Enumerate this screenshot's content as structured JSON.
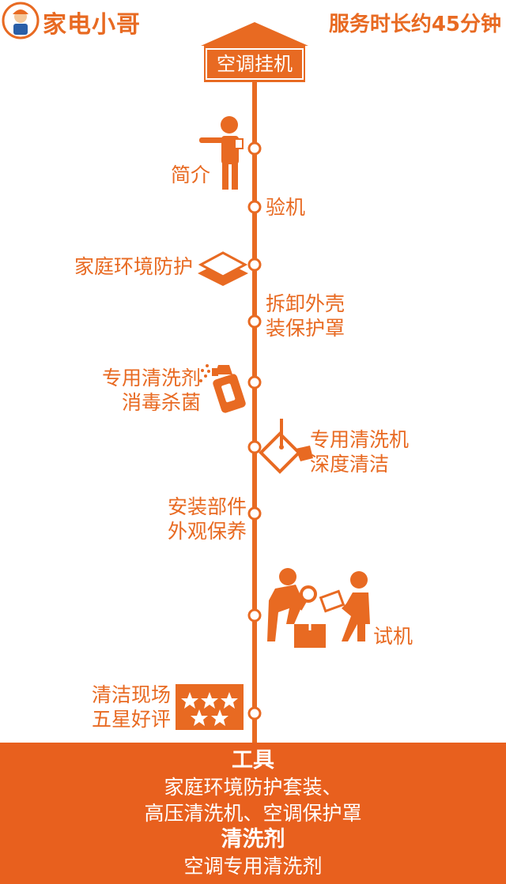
{
  "header": {
    "brand": "家电小哥",
    "service_duration": "服务时长约45分钟"
  },
  "title": "空调挂机",
  "steps": [
    {
      "lines": [
        "简介"
      ]
    },
    {
      "lines": [
        "验机"
      ]
    },
    {
      "lines": [
        "家庭环境防护"
      ]
    },
    {
      "lines": [
        "拆卸外壳",
        "装保护罩"
      ]
    },
    {
      "lines": [
        "专用清洗剂",
        "消毒杀菌"
      ]
    },
    {
      "lines": [
        "专用清洗机",
        "深度清洁"
      ]
    },
    {
      "lines": [
        "安装部件",
        "外观保养"
      ]
    },
    {
      "lines": [
        "试机"
      ]
    },
    {
      "lines": [
        "清洁现场",
        "五星好评"
      ]
    }
  ],
  "footer": {
    "tools_heading": "工具",
    "tools_line1": "家庭环境防护套装、",
    "tools_line2": "高压清洗机、空调保护罩",
    "cleaner_heading": "清洗剂",
    "cleaner_line": "空调专用清洗剂"
  },
  "colors": {
    "accent": "#e86a22"
  }
}
